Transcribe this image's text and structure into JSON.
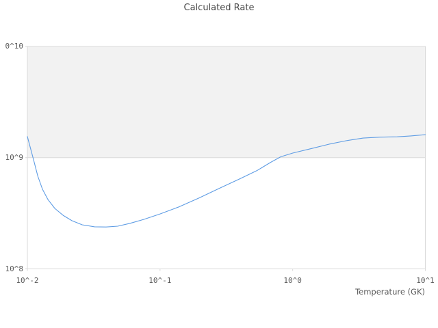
{
  "chart_data": {
    "type": "line",
    "title": "Calculated Rate",
    "xlabel": "Temperature (GK)",
    "ylabel": "",
    "legend": "none",
    "grid": "single horizontal gridline at 10^9; shaded band between 10^9 and 10^10",
    "x_axis": {
      "scale": "log",
      "min": 0.01,
      "max": 10,
      "ticks": [
        0.01,
        0.1,
        1,
        10
      ],
      "tick_labels": [
        "10^-2",
        "10^-1",
        "10^0",
        "10^1"
      ]
    },
    "y_axis": {
      "scale": "log",
      "min": 100000000.0,
      "max": 10000000000.0,
      "ticks": [
        10000000000.0,
        1000000000.0,
        100000000.0
      ],
      "tick_labels": [
        "0^10",
        "10^9",
        "10^8"
      ]
    },
    "bands": [
      {
        "from": 1000000000.0,
        "to": 10000000000.0,
        "color": "#f2f2f2"
      }
    ],
    "colors": {
      "line": "#5e9ce4",
      "border": "#d9d9d9",
      "band": "#f2f2f2",
      "text": "#595959",
      "title_text": "#474747"
    },
    "series": [
      {
        "name": "calculated-rate",
        "color": "#5e9ce4",
        "points": [
          [
            0.01,
            1550000000.0
          ],
          [
            0.0111,
            970000000.0
          ],
          [
            0.012,
            680000000.0
          ],
          [
            0.013,
            520000000.0
          ],
          [
            0.0143,
            420000000.0
          ],
          [
            0.0161,
            350000000.0
          ],
          [
            0.0186,
            303000000.0
          ],
          [
            0.0217,
            271000000.0
          ],
          [
            0.0259,
            249000000.0
          ],
          [
            0.0321,
            239000000.0
          ],
          [
            0.0392,
            238000000.0
          ],
          [
            0.048,
            242000000.0
          ],
          [
            0.0595,
            257000000.0
          ],
          [
            0.0757,
            279000000.0
          ],
          [
            0.1,
            312000000.0
          ],
          [
            0.137,
            359000000.0
          ],
          [
            0.196,
            433000000.0
          ],
          [
            0.279,
            529000000.0
          ],
          [
            0.399,
            645000000.0
          ],
          [
            0.536,
            764000000.0
          ],
          [
            0.685,
            910000000.0
          ],
          [
            0.815,
            1020000000.0
          ],
          [
            1.0,
            1100000000.0
          ],
          [
            1.39,
            1210000000.0
          ],
          [
            1.87,
            1320000000.0
          ],
          [
            2.52,
            1420000000.0
          ],
          [
            3.39,
            1500000000.0
          ],
          [
            4.56,
            1530000000.0
          ],
          [
            6.14,
            1540000000.0
          ],
          [
            7.78,
            1570000000.0
          ],
          [
            10.0,
            1610000000.0
          ]
        ]
      }
    ]
  }
}
